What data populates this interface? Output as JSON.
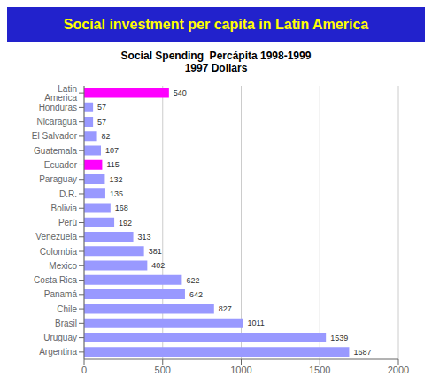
{
  "chart_data": {
    "type": "bar",
    "orientation": "horizontal",
    "title": "Social investment per capita in Latin America",
    "subtitle": "Social Spending  Percápita 1998-1999\n1997 Dollars",
    "categories": [
      "Latin America",
      "Honduras",
      "Nicaragua",
      "El Salvador",
      "Guatemala",
      "Ecuador",
      "Paraguay",
      "D.R.",
      "Bolivia",
      "Perú",
      "Venezuela",
      "Colombia",
      "Mexico",
      "Costa Rica",
      "Panamá",
      "Chile",
      "Brasil",
      "Uruguay",
      "Argentina"
    ],
    "values": [
      540,
      57,
      57,
      82,
      107,
      115,
      132,
      135,
      168,
      192,
      313,
      381,
      402,
      622,
      642,
      827,
      1011,
      1539,
      1687
    ],
    "colors": [
      "#FF00FF",
      "#9999FF",
      "#9999FF",
      "#9999FF",
      "#9999FF",
      "#FF00FF",
      "#9999FF",
      "#9999FF",
      "#9999FF",
      "#9999FF",
      "#9999FF",
      "#9999FF",
      "#9999FF",
      "#9999FF",
      "#9999FF",
      "#9999FF",
      "#9999FF",
      "#9999FF",
      "#9999FF"
    ],
    "xlim": [
      0,
      2000
    ],
    "xticks": [
      0,
      500,
      1000,
      1500,
      2000
    ],
    "grid": true,
    "data_labels": true
  }
}
